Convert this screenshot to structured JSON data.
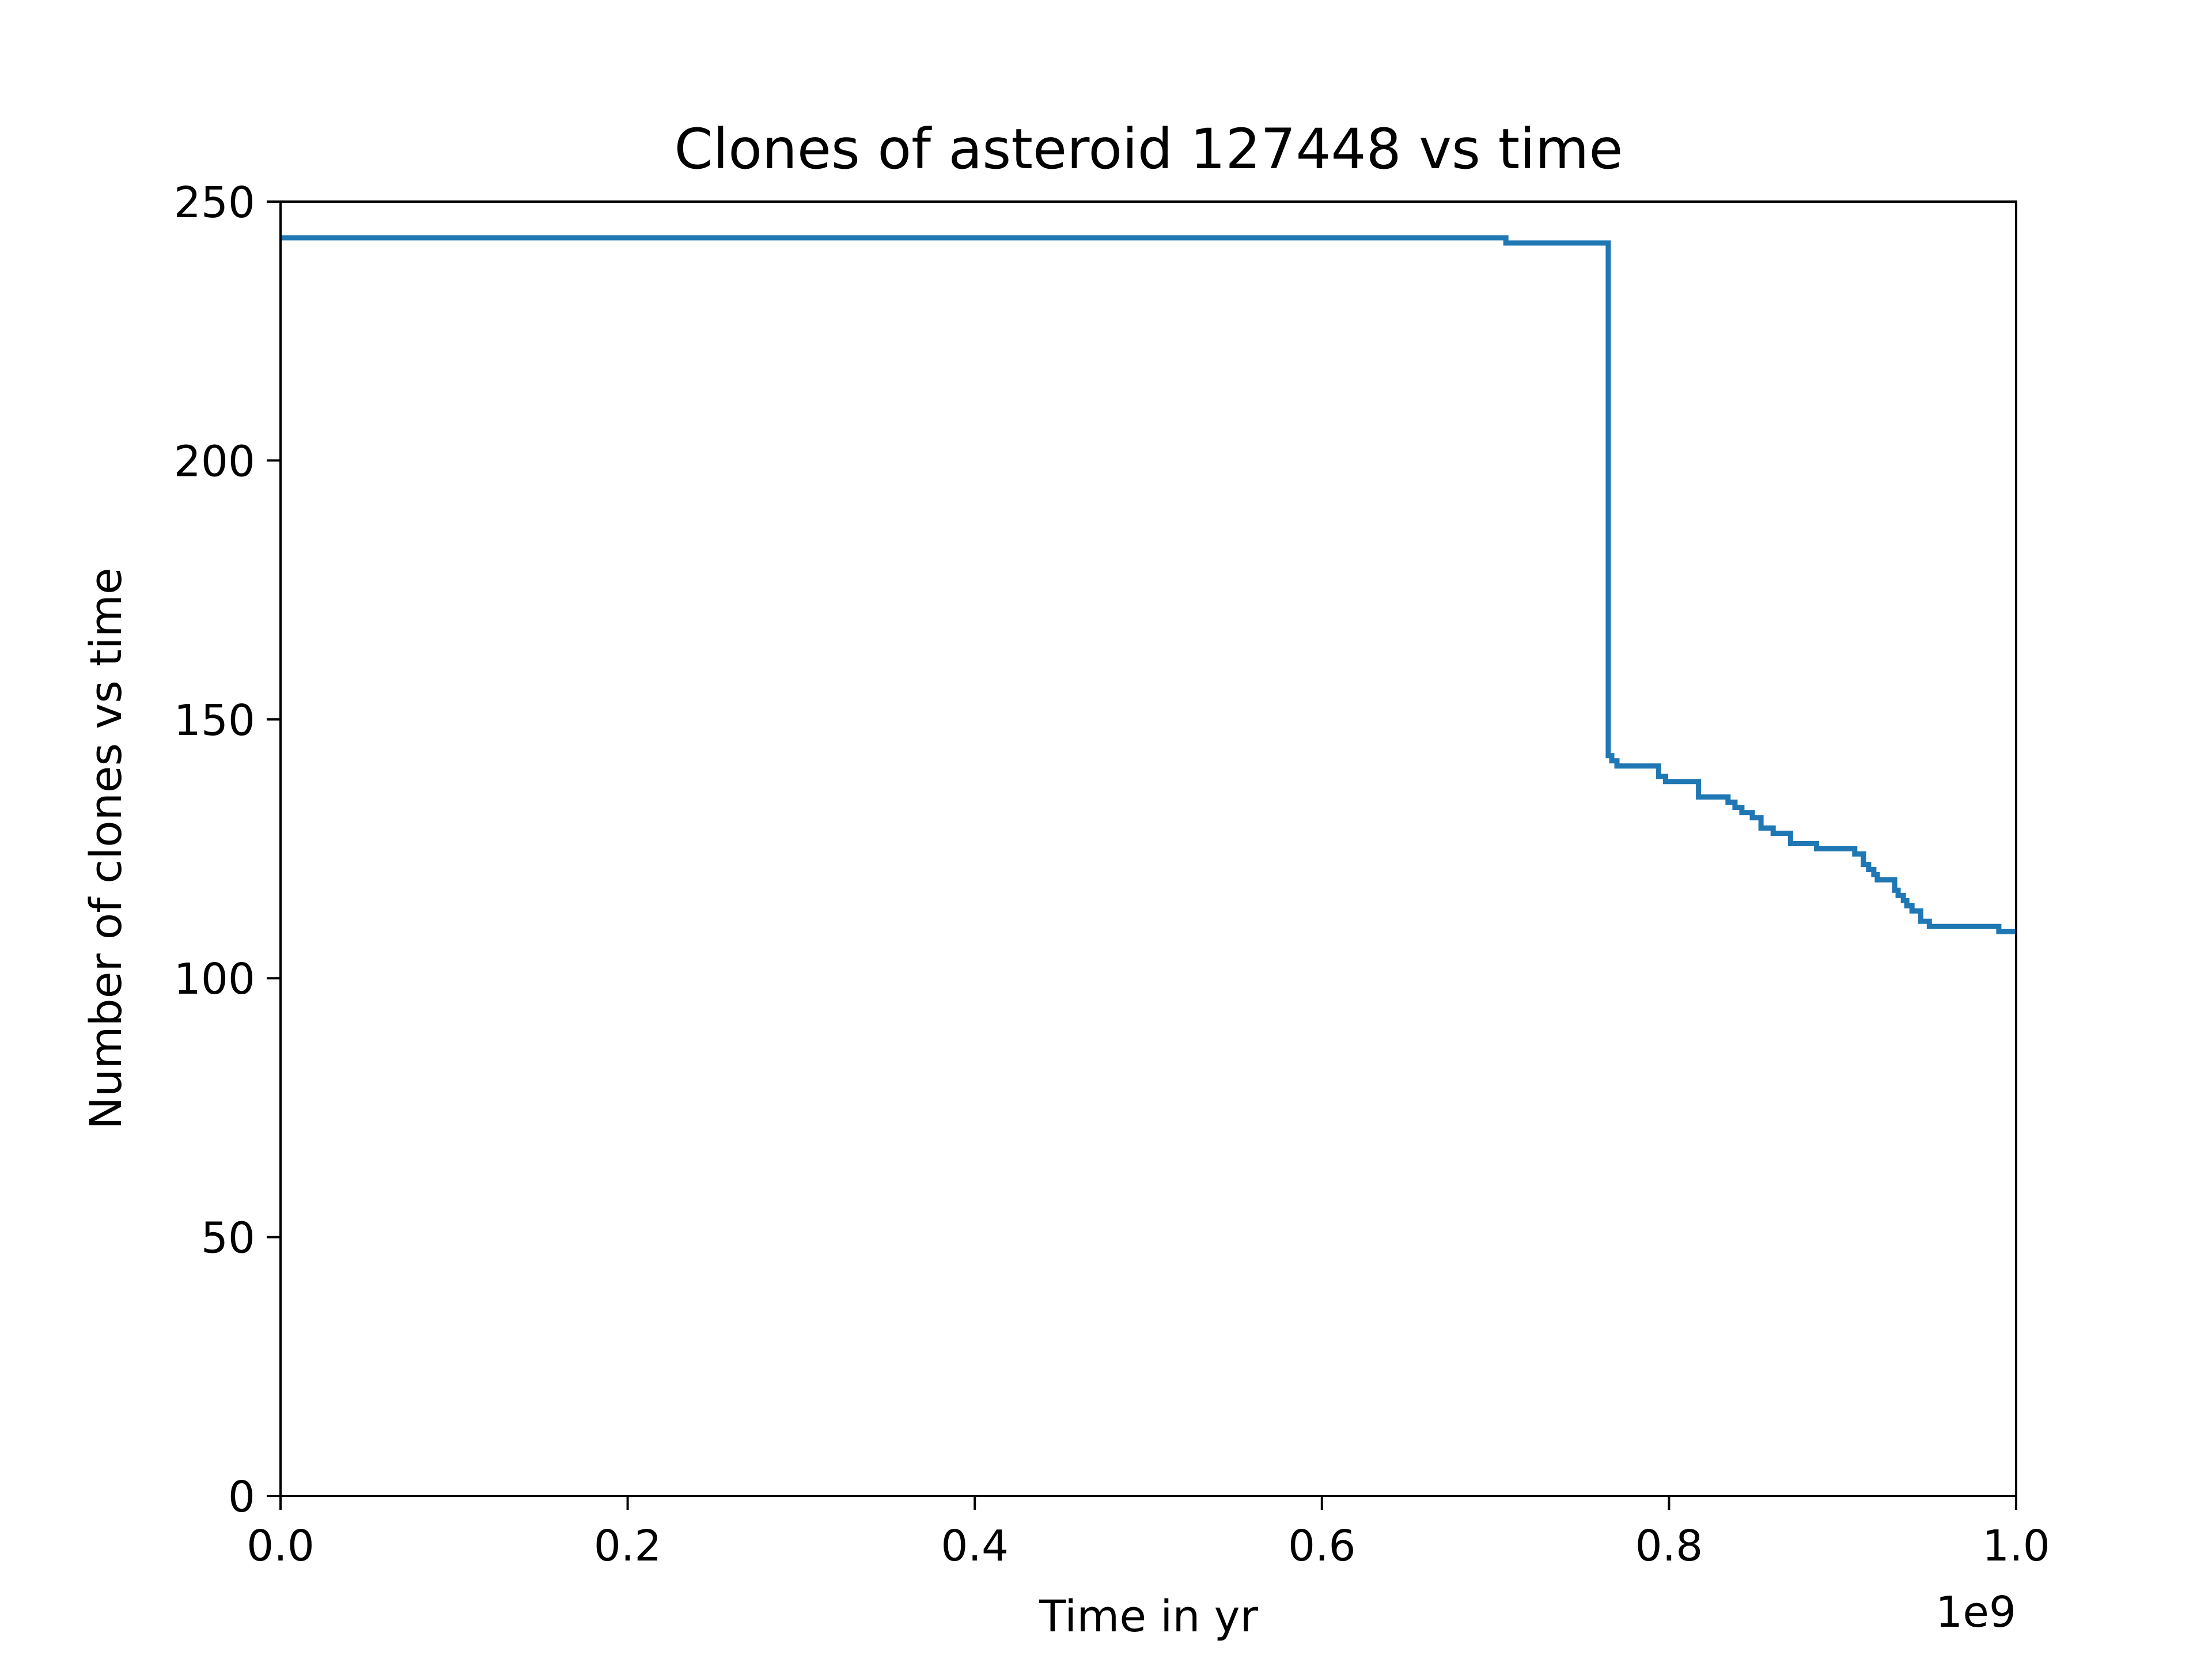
{
  "chart_data": {
    "type": "line",
    "title": "Clones of asteroid 127448 vs time",
    "xlabel": "Time in yr",
    "ylabel": "Number of clones vs time",
    "x_offset_label": "1e9",
    "xlim": [
      0.0,
      1.0
    ],
    "ylim": [
      0,
      250
    ],
    "x_ticks": [
      0.0,
      0.2,
      0.4,
      0.6,
      0.8,
      1.0
    ],
    "x_tick_labels": [
      "0.0",
      "0.2",
      "0.4",
      "0.6",
      "0.8",
      "1.0"
    ],
    "y_ticks": [
      0,
      50,
      100,
      150,
      200,
      250
    ],
    "y_tick_labels": [
      "0",
      "50",
      "100",
      "150",
      "200",
      "250"
    ],
    "grid": false,
    "legend": "none",
    "series": [
      {
        "color": "#1f77b4",
        "step": "post",
        "x": [
          0.0,
          0.706,
          0.765,
          0.767,
          0.77,
          0.794,
          0.798,
          0.803,
          0.817,
          0.834,
          0.838,
          0.842,
          0.848,
          0.853,
          0.86,
          0.87,
          0.885,
          0.907,
          0.912,
          0.915,
          0.918,
          0.92,
          0.93,
          0.932,
          0.935,
          0.937,
          0.94,
          0.945,
          0.95,
          0.955,
          0.958,
          0.99,
          1.0
        ],
        "y": [
          243,
          242,
          143,
          142,
          141,
          139,
          138,
          138,
          135,
          134,
          133,
          132,
          131,
          129,
          128,
          126,
          125,
          124,
          122,
          121,
          120,
          119,
          117,
          116,
          115,
          114,
          113,
          111,
          110,
          110,
          110,
          109,
          109
        ]
      }
    ]
  }
}
